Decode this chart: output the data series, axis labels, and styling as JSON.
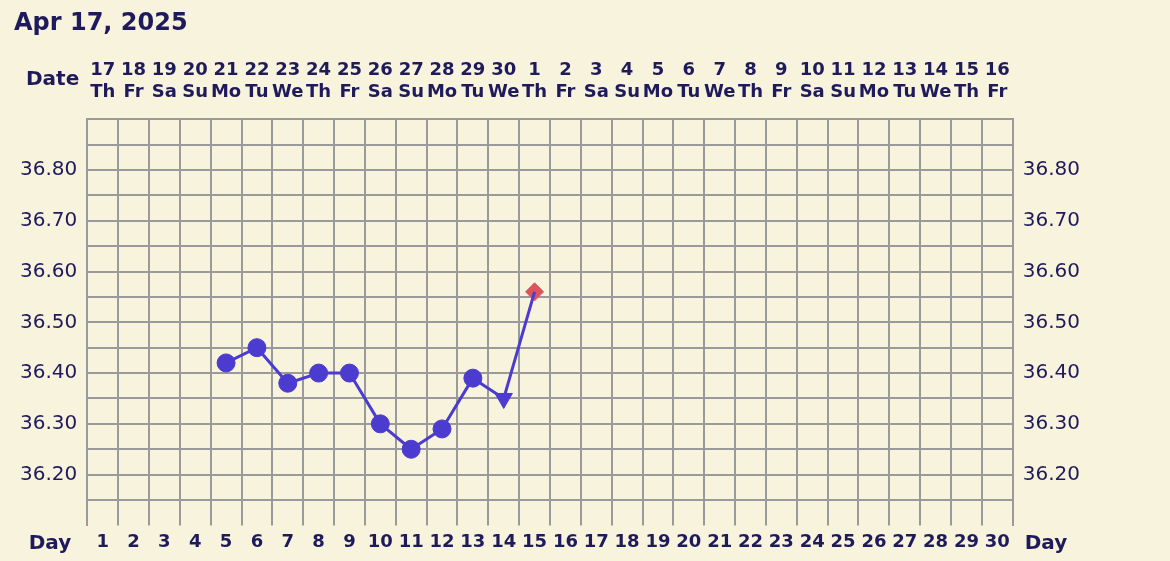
{
  "chart_data": {
    "type": "line",
    "title": "Apr 17, 2025",
    "xlabel": "Date",
    "x2label": "Day",
    "categories": [
      "17\nTh",
      "18\nFr",
      "19\nSa",
      "20\nSu",
      "21\nMo",
      "22\nTu",
      "23\nWe",
      "24\nTh",
      "25\nFr",
      "26\nSa",
      "27\nSu",
      "28\nMo",
      "29\nTu",
      "30\nWe",
      "1\nTh",
      "2\nFr",
      "3\nSa",
      "4\nSu",
      "5\nMo",
      "6\nTu",
      "7\nWe",
      "8\nTh",
      "9\nFr",
      "10\nSa",
      "11\nSu",
      "12\nMo",
      "13\nTu",
      "14\nWe",
      "15\nTh",
      "16\nFr"
    ],
    "x2lim": [
      0.5,
      30.5
    ],
    "x2ticks": [
      1,
      2,
      3,
      4,
      5,
      6,
      7,
      8,
      9,
      10,
      11,
      12,
      13,
      14,
      15,
      16,
      17,
      18,
      19,
      20,
      21,
      22,
      23,
      24,
      25,
      26,
      27,
      28,
      29,
      30
    ],
    "ylim": [
      36.1,
      36.9
    ],
    "yticks": [
      {
        "value": 36.15,
        "label": null
      },
      {
        "value": 36.2,
        "label": "36.20"
      },
      {
        "value": 36.25,
        "label": null
      },
      {
        "value": 36.3,
        "label": "36.30"
      },
      {
        "value": 36.35,
        "label": null
      },
      {
        "value": 36.4,
        "label": "36.40"
      },
      {
        "value": 36.45,
        "label": null
      },
      {
        "value": 36.5,
        "label": "36.50"
      },
      {
        "value": 36.55,
        "label": null
      },
      {
        "value": 36.6,
        "label": "36.60"
      },
      {
        "value": 36.65,
        "label": null
      },
      {
        "value": 36.7,
        "label": "36.70"
      },
      {
        "value": 36.75,
        "label": null
      },
      {
        "value": 36.8,
        "label": "36.80"
      },
      {
        "value": 36.85,
        "label": null
      }
    ],
    "y2lim": [
      36.1,
      36.9
    ],
    "y2ticks": [
      {
        "value": 36.15,
        "label": null
      },
      {
        "value": 36.2,
        "label": "36.20"
      },
      {
        "value": 36.25,
        "label": null
      },
      {
        "value": 36.3,
        "label": "36.30"
      },
      {
        "value": 36.35,
        "label": null
      },
      {
        "value": 36.4,
        "label": "36.40"
      },
      {
        "value": 36.45,
        "label": null
      },
      {
        "value": 36.5,
        "label": "36.50"
      },
      {
        "value": 36.55,
        "label": null
      },
      {
        "value": 36.6,
        "label": "36.60"
      },
      {
        "value": 36.65,
        "label": null
      },
      {
        "value": 36.7,
        "label": "36.70"
      },
      {
        "value": 36.75,
        "label": null
      },
      {
        "value": 36.8,
        "label": "36.80"
      },
      {
        "value": 36.85,
        "label": null
      }
    ],
    "grid": true,
    "legend": false,
    "series": [
      {
        "marker": "none",
        "color": "#4b3bcf",
        "values": [
          null,
          null,
          null,
          null,
          36.42,
          36.45,
          36.38,
          36.4,
          36.4,
          36.3,
          36.25,
          36.29,
          36.39,
          36.35,
          36.56,
          null,
          null,
          null,
          null,
          null,
          null,
          null,
          null,
          null,
          null,
          null,
          null,
          null,
          null,
          null
        ]
      },
      {
        "type": "scatter",
        "marker": "circle",
        "color": "#4b3bcf",
        "values": [
          null,
          null,
          null,
          null,
          36.42,
          36.45,
          36.38,
          36.4,
          36.4,
          36.3,
          36.25,
          36.29,
          36.39,
          null,
          null,
          null,
          null,
          null,
          null,
          null,
          null,
          null,
          null,
          null,
          null,
          null,
          null,
          null,
          null,
          null
        ]
      },
      {
        "type": "scatter",
        "marker": "triangle",
        "color": "#4b3bcf",
        "values": [
          null,
          null,
          null,
          null,
          null,
          null,
          null,
          null,
          null,
          null,
          null,
          null,
          null,
          36.35,
          null,
          null,
          null,
          null,
          null,
          null,
          null,
          null,
          null,
          null,
          null,
          null,
          null,
          null,
          null,
          null
        ]
      },
      {
        "type": "scatter",
        "marker": "diamond",
        "color": "#d9545c",
        "values": [
          null,
          null,
          null,
          null,
          null,
          null,
          null,
          null,
          null,
          null,
          null,
          null,
          null,
          null,
          36.56,
          null,
          null,
          null,
          null,
          null,
          null,
          null,
          null,
          null,
          null,
          null,
          null,
          null,
          null,
          null
        ]
      }
    ]
  }
}
